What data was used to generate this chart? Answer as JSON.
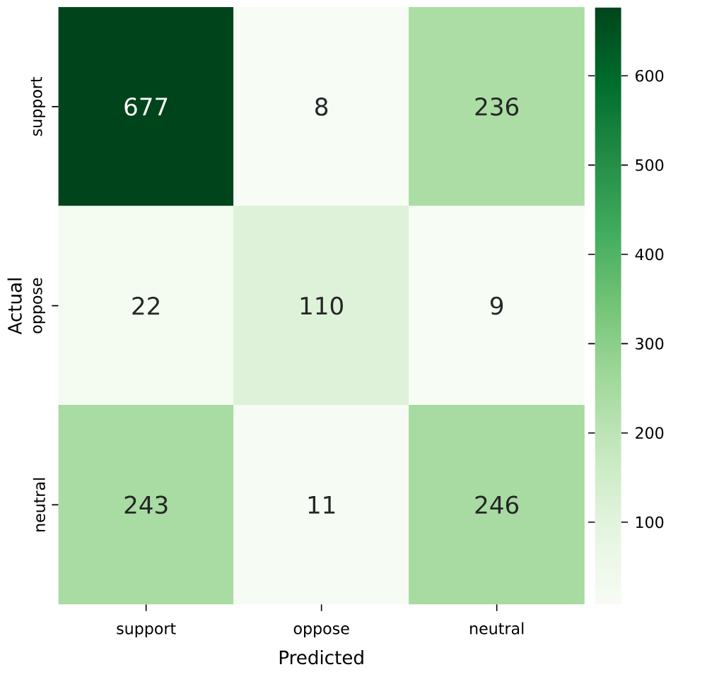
{
  "chart_data": {
    "type": "heatmap",
    "xlabel": "Predicted",
    "ylabel": "Actual",
    "categories": [
      "support",
      "oppose",
      "neutral"
    ],
    "y_categories": [
      "support",
      "oppose",
      "neutral"
    ],
    "cells": [
      [
        677,
        8,
        236
      ],
      [
        22,
        110,
        9
      ],
      [
        243,
        11,
        246
      ]
    ],
    "data_labels": true,
    "clim": [
      8,
      677
    ],
    "cticks": [
      100,
      200,
      300,
      400,
      500,
      600
    ]
  }
}
